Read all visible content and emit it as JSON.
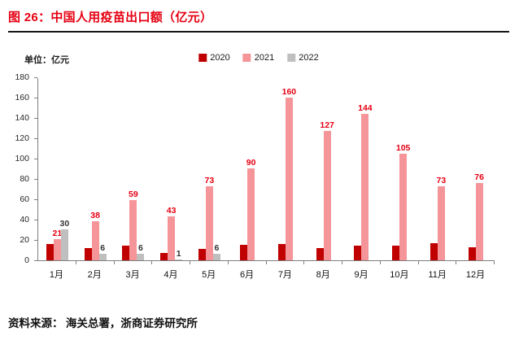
{
  "header": {
    "title": "图 26：中国人用疫苗出口额（亿元）"
  },
  "chart": {
    "unit_label": "单位：亿元"
  },
  "footer": {
    "source": "资料来源： 海关总署，浙商证券研究所"
  },
  "theme": {
    "title_color": "#e60012",
    "rule_color": "#161616",
    "axis_color": "#7f7f7f",
    "tick_color": "#7f7f7f",
    "label_2021_color": "#e60012",
    "label_2022_color": "#333333"
  },
  "chart_data": {
    "type": "bar",
    "title": "中国人用疫苗出口额（亿元）",
    "ylabel": "亿元",
    "ylim": [
      0,
      180
    ],
    "yticks": [
      0,
      20,
      40,
      60,
      80,
      100,
      120,
      140,
      160,
      180
    ],
    "grid": false,
    "legend_position": "top",
    "categories": [
      "1月",
      "2月",
      "3月",
      "4月",
      "5月",
      "6月",
      "7月",
      "8月",
      "9月",
      "10月",
      "11月",
      "12月"
    ],
    "series": [
      {
        "name": "2020",
        "color": "#c00000",
        "show_labels": false,
        "label_color": "#c00000",
        "values": [
          16,
          12,
          14,
          7,
          11,
          15,
          16,
          12,
          14,
          14,
          17,
          13
        ]
      },
      {
        "name": "2021",
        "color": "#f59599",
        "show_labels": true,
        "label_color": "#e60012",
        "values": [
          21,
          38,
          59,
          43,
          73,
          90,
          160,
          127,
          144,
          105,
          73,
          76
        ]
      },
      {
        "name": "2022",
        "color": "#bfbfbf",
        "show_labels": true,
        "label_color": "#333333",
        "values": [
          30,
          6,
          6,
          1,
          6,
          null,
          null,
          null,
          null,
          null,
          null,
          null
        ]
      }
    ]
  }
}
